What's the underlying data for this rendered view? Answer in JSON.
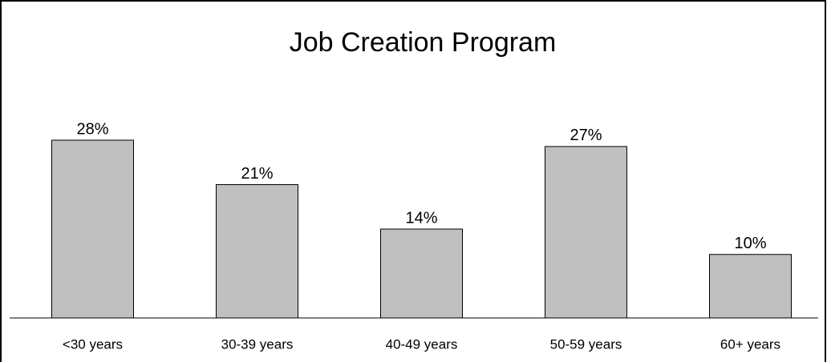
{
  "chart_data": {
    "type": "bar",
    "title": "Job Creation Program",
    "categories": [
      "<30 years",
      "30-39 years",
      "40-49 years",
      "50-59 years",
      "60+ years"
    ],
    "values": [
      28,
      21,
      14,
      27,
      10
    ],
    "value_labels": [
      "28%",
      "21%",
      "14%",
      "27%",
      "10%"
    ],
    "color": "#c0c0c0"
  }
}
